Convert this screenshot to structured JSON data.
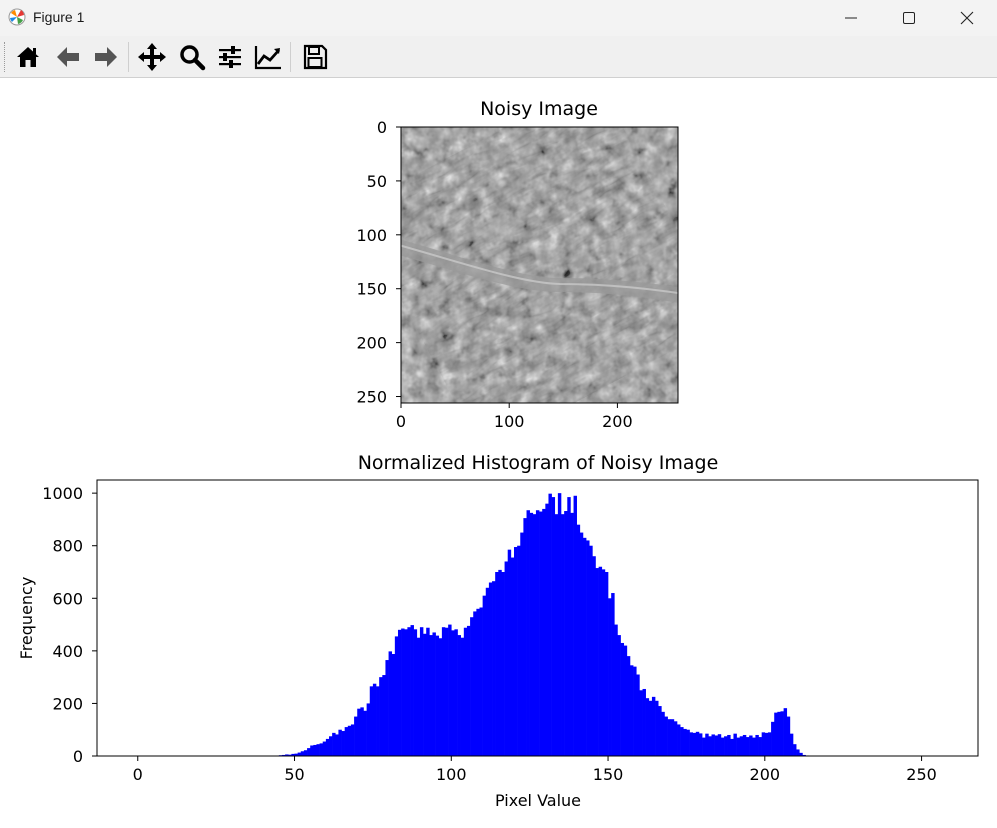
{
  "window": {
    "title": "Figure 1"
  },
  "toolbar": {
    "tools": [
      {
        "name": "home-button",
        "icon": "home-icon"
      },
      {
        "name": "back-button",
        "icon": "arrow-left-icon"
      },
      {
        "name": "forward-button",
        "icon": "arrow-right-icon"
      },
      {
        "name": "pan-button",
        "icon": "move-icon"
      },
      {
        "name": "zoom-button",
        "icon": "magnifier-icon"
      },
      {
        "name": "configure-subplots-button",
        "icon": "sliders-icon"
      },
      {
        "name": "edit-axes-button",
        "icon": "line-chart-icon"
      },
      {
        "name": "save-button",
        "icon": "floppy-disk-icon"
      }
    ]
  },
  "chart_data": [
    {
      "type": "image",
      "title": "Noisy Image",
      "xlim": [
        0,
        256
      ],
      "ylim": [
        256,
        0
      ],
      "xticks": [
        "0",
        "100",
        "200"
      ],
      "yticks": [
        "0",
        "50",
        "100",
        "150",
        "200",
        "250"
      ],
      "colormap": "gray"
    },
    {
      "type": "bar",
      "title": "Normalized Histogram of Noisy Image",
      "xlabel": "Pixel Value",
      "ylabel": "Frequency",
      "xlim": [
        -13,
        268
      ],
      "ylim": [
        0,
        1050
      ],
      "xticks": [
        "0",
        "50",
        "100",
        "150",
        "200",
        "250"
      ],
      "yticks": [
        "0",
        "200",
        "400",
        "600",
        "800",
        "1000"
      ],
      "bar_color": "#0000ff",
      "bin_width": 1,
      "x_start": 45,
      "values": [
        3,
        4,
        6,
        5,
        8,
        9,
        13,
        18,
        22,
        30,
        40,
        42,
        45,
        48,
        55,
        65,
        75,
        88,
        82,
        100,
        95,
        110,
        115,
        120,
        150,
        180,
        185,
        172,
        200,
        265,
        275,
        265,
        300,
        308,
        365,
        398,
        388,
        455,
        480,
        485,
        482,
        490,
        498,
        482,
        450,
        490,
        465,
        488,
        460,
        470,
        458,
        448,
        490,
        488,
        500,
        478,
        482,
        460,
        450,
        488,
        495,
        528,
        550,
        560,
        565,
        610,
        640,
        660,
        665,
        700,
        708,
        700,
        740,
        785,
        755,
        795,
        800,
        850,
        905,
        935,
        925,
        920,
        935,
        930,
        940,
        960,
        998,
        985,
        920,
        1000,
        920,
        932,
        985,
        925,
        990,
        880,
        850,
        830,
        820,
        800,
        760,
        715,
        720,
        710,
        700,
        600,
        620,
        500,
        460,
        430,
        420,
        380,
        345,
        340,
        310,
        250,
        255,
        220,
        210,
        225,
        210,
        190,
        168,
        150,
        140,
        140,
        132,
        120,
        110,
        103,
        100,
        90,
        88,
        92,
        86,
        70,
        85,
        75,
        82,
        78,
        83,
        70,
        75,
        80,
        65,
        85,
        70,
        75,
        80,
        72,
        78,
        70,
        80,
        72,
        90,
        88,
        90,
        130,
        165,
        168,
        170,
        182,
        150,
        85,
        45,
        25,
        12,
        4,
        2
      ]
    }
  ]
}
